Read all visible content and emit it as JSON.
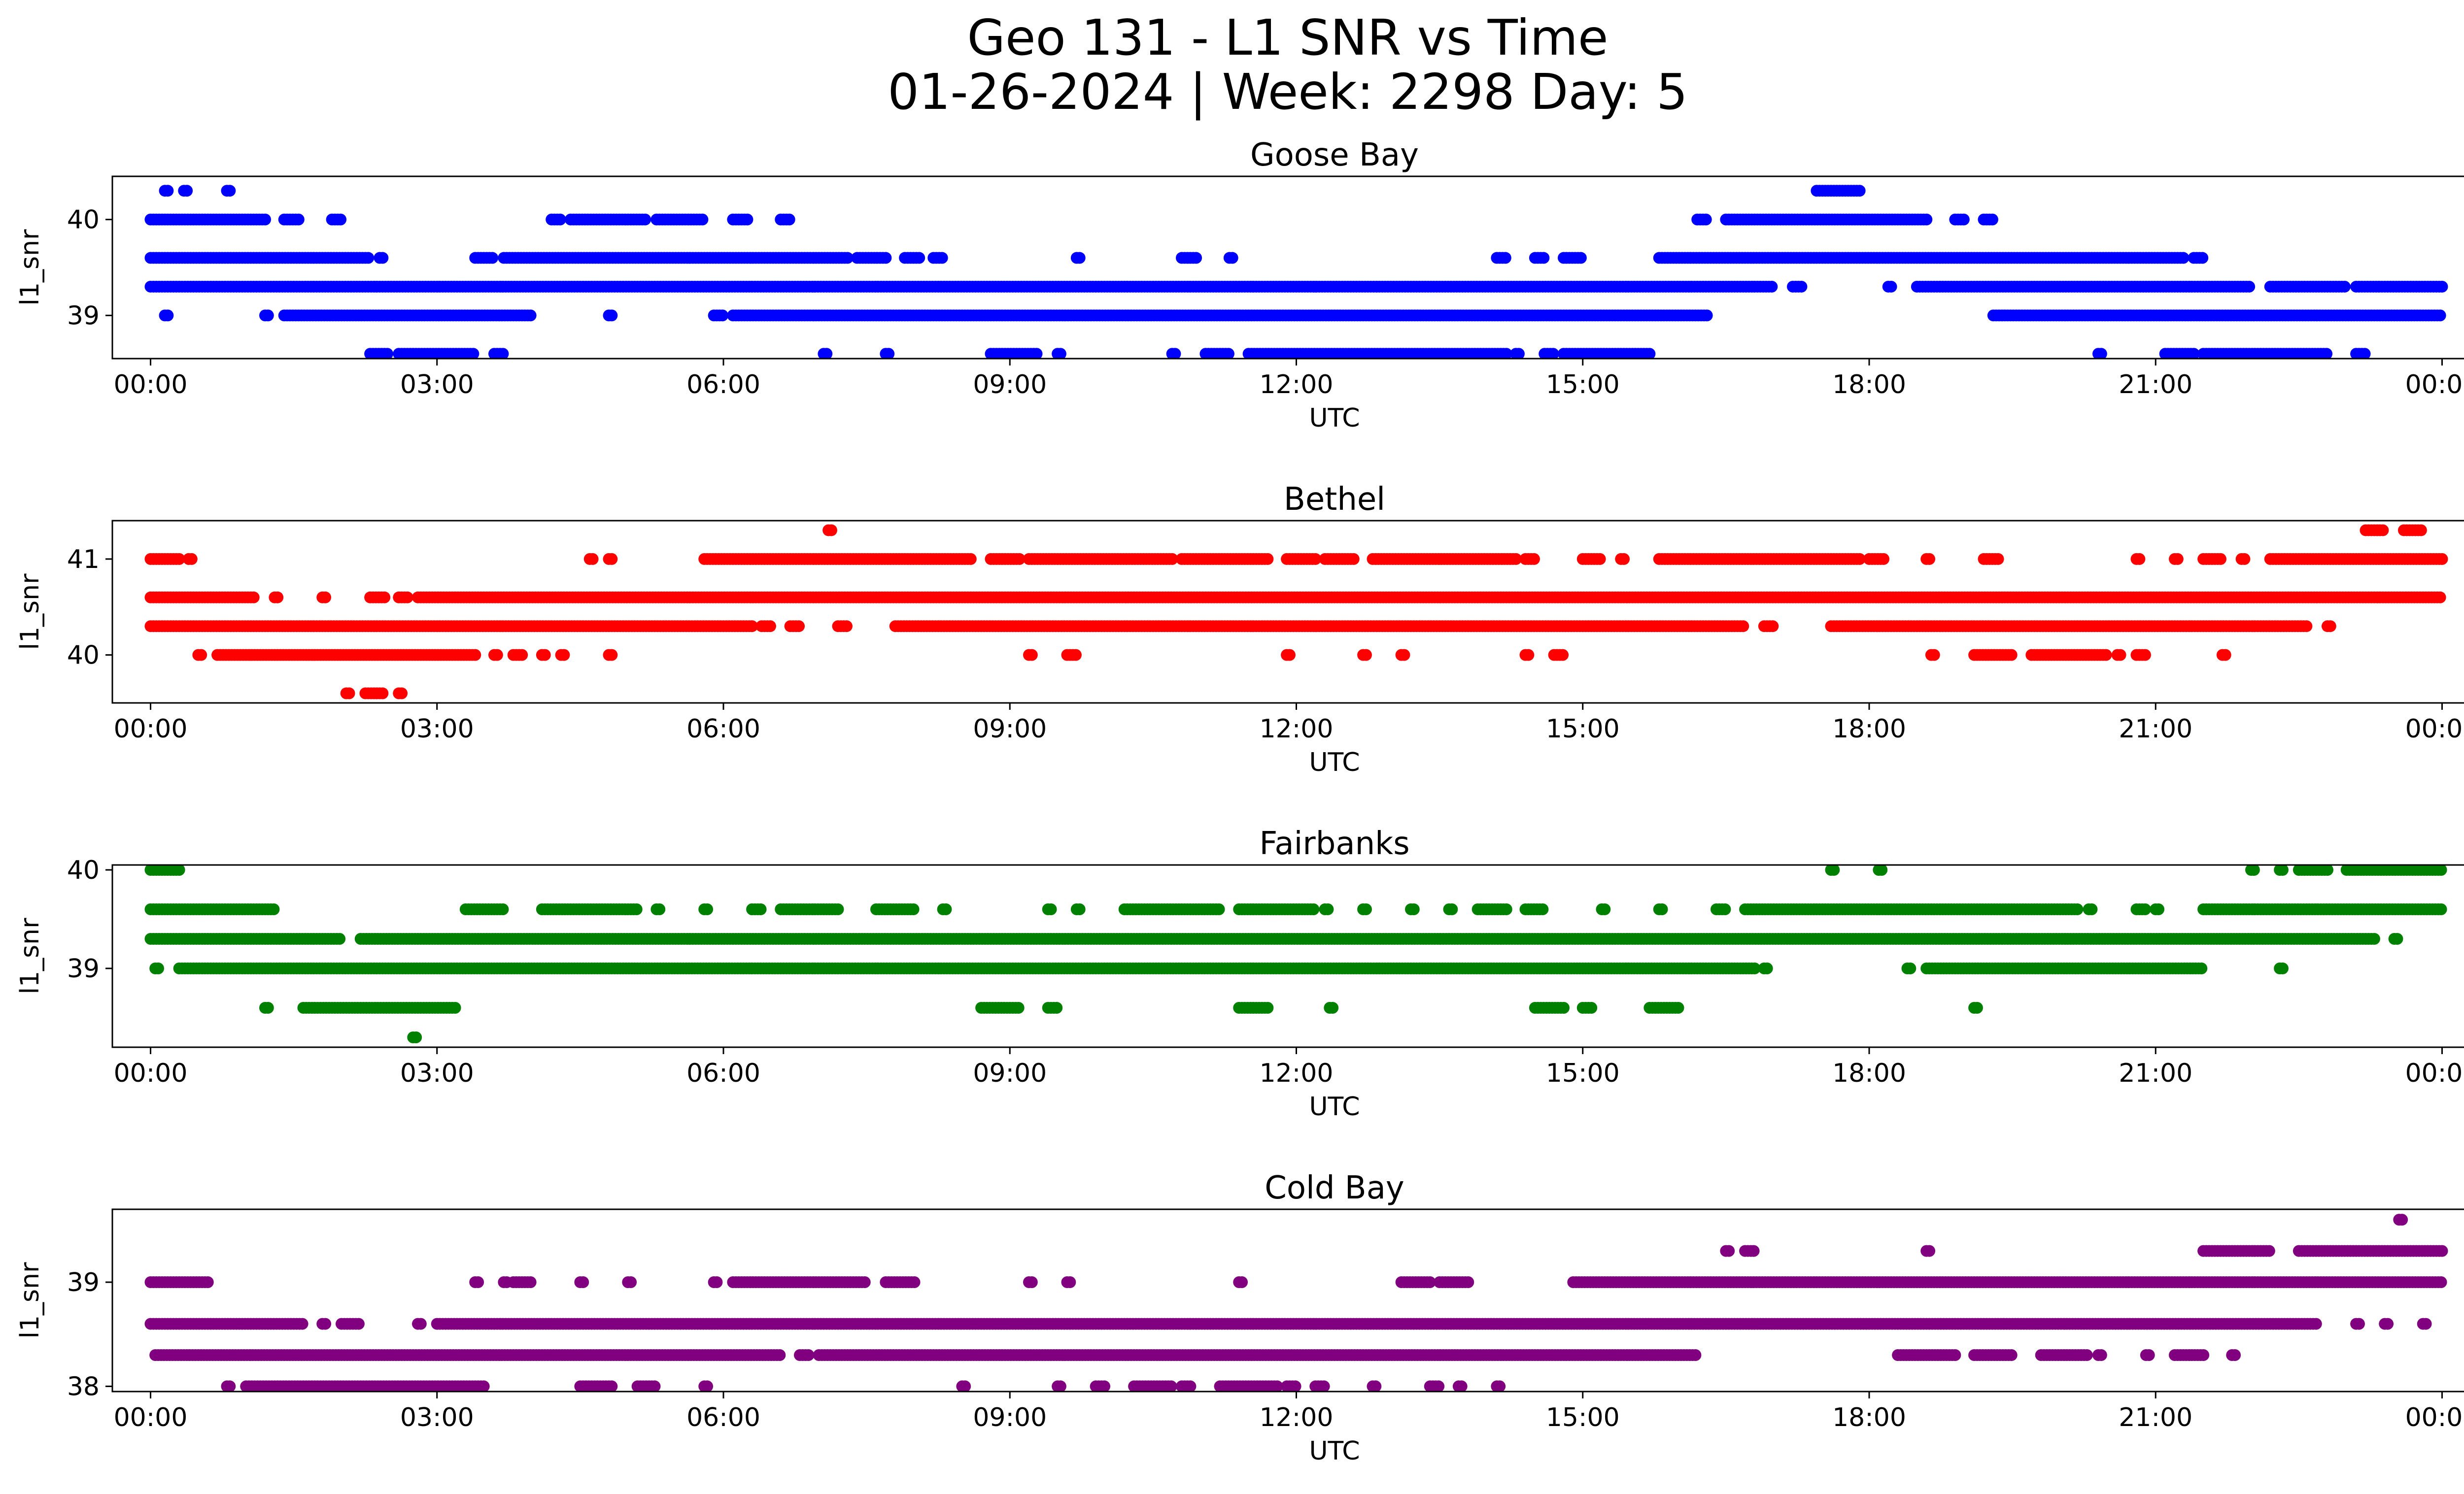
{
  "figure": {
    "title_line1": "Geo 131 - L1 SNR vs Time",
    "title_line2": "01-26-2024 | Week: 2298 Day: 5"
  },
  "x_axis": {
    "label": "UTC",
    "range_hours": [
      -0.4,
      25.2
    ],
    "ticks_hours": [
      0,
      3,
      6,
      9,
      12,
      15,
      18,
      21,
      24
    ],
    "tick_labels": [
      "00:00",
      "03:00",
      "06:00",
      "09:00",
      "12:00",
      "15:00",
      "18:00",
      "21:00",
      "00:00"
    ]
  },
  "chart_data": [
    {
      "type": "scatter",
      "title": "Goose Bay",
      "xlabel": "UTC",
      "ylabel": "l1_snr",
      "color": "#0000ff",
      "ylim": [
        38.55,
        40.45
      ],
      "yticks": [
        39,
        40
      ],
      "ytick_labels": [
        "39",
        "40"
      ],
      "runs": [
        {
          "y": 40.3,
          "segments": [
            [
              0.15,
              0.2
            ],
            [
              0.35,
              0.4
            ],
            [
              0.8,
              0.85
            ],
            [
              17.45,
              17.9
            ]
          ]
        },
        {
          "y": 40.0,
          "segments": [
            [
              0.0,
              1.2
            ],
            [
              1.4,
              1.55
            ],
            [
              1.9,
              2.0
            ],
            [
              4.2,
              4.3
            ],
            [
              4.4,
              5.2
            ],
            [
              5.3,
              5.8
            ],
            [
              6.1,
              6.25
            ],
            [
              6.6,
              6.7
            ],
            [
              16.2,
              16.3
            ],
            [
              16.5,
              18.6
            ],
            [
              18.9,
              19.0
            ],
            [
              19.2,
              19.3
            ]
          ]
        },
        {
          "y": 39.6,
          "segments": [
            [
              0.0,
              2.3
            ],
            [
              2.4,
              2.45
            ],
            [
              3.4,
              3.6
            ],
            [
              3.7,
              7.3
            ],
            [
              7.4,
              7.7
            ],
            [
              7.9,
              8.05
            ],
            [
              8.2,
              8.3
            ],
            [
              9.7,
              9.75
            ],
            [
              10.8,
              10.95
            ],
            [
              11.3,
              11.35
            ],
            [
              14.1,
              14.2
            ],
            [
              14.5,
              14.6
            ],
            [
              14.8,
              15.0
            ],
            [
              15.8,
              21.3
            ],
            [
              21.4,
              21.5
            ]
          ]
        },
        {
          "y": 39.3,
          "segments": [
            [
              0.0,
              17.0
            ],
            [
              17.2,
              17.3
            ],
            [
              18.2,
              18.25
            ],
            [
              18.5,
              22.0
            ],
            [
              22.2,
              23.0
            ],
            [
              23.1,
              24.0
            ]
          ]
        },
        {
          "y": 39.0,
          "segments": [
            [
              0.15,
              0.2
            ],
            [
              1.2,
              1.25
            ],
            [
              1.4,
              4.0
            ],
            [
              4.8,
              4.85
            ],
            [
              5.9,
              6.0
            ],
            [
              6.1,
              16.3
            ],
            [
              19.3,
              24.0
            ]
          ]
        },
        {
          "y": 38.6,
          "segments": [
            [
              2.3,
              2.5
            ],
            [
              2.6,
              3.4
            ],
            [
              3.6,
              3.7
            ],
            [
              7.05,
              7.1
            ],
            [
              7.7,
              7.75
            ],
            [
              8.8,
              9.3
            ],
            [
              9.5,
              9.55
            ],
            [
              10.7,
              10.75
            ],
            [
              11.05,
              11.3
            ],
            [
              11.5,
              14.2
            ],
            [
              14.3,
              14.35
            ],
            [
              14.6,
              14.7
            ],
            [
              14.8,
              15.7
            ],
            [
              20.4,
              20.45
            ],
            [
              21.1,
              21.4
            ],
            [
              21.5,
              22.8
            ],
            [
              23.1,
              23.2
            ]
          ]
        }
      ]
    },
    {
      "type": "scatter",
      "title": "Bethel",
      "xlabel": "UTC",
      "ylabel": "l1_snr",
      "color": "#ff0000",
      "ylim": [
        39.5,
        41.4
      ],
      "yticks": [
        40,
        41
      ],
      "ytick_labels": [
        "40",
        "41"
      ],
      "runs": [
        {
          "y": 41.3,
          "segments": [
            [
              7.1,
              7.15
            ],
            [
              23.2,
              23.4
            ],
            [
              23.6,
              23.8
            ]
          ]
        },
        {
          "y": 41.0,
          "segments": [
            [
              0.0,
              0.3
            ],
            [
              0.4,
              0.45
            ],
            [
              4.6,
              4.65
            ],
            [
              4.8,
              4.85
            ],
            [
              5.8,
              8.6
            ],
            [
              8.8,
              9.1
            ],
            [
              9.2,
              10.7
            ],
            [
              10.8,
              11.7
            ],
            [
              11.9,
              12.2
            ],
            [
              12.3,
              12.6
            ],
            [
              12.8,
              14.3
            ],
            [
              14.4,
              14.5
            ],
            [
              15.0,
              15.2
            ],
            [
              15.4,
              15.45
            ],
            [
              15.8,
              17.9
            ],
            [
              18.0,
              18.15
            ],
            [
              18.6,
              18.65
            ],
            [
              19.2,
              19.35
            ],
            [
              20.8,
              20.85
            ],
            [
              21.2,
              21.25
            ],
            [
              21.5,
              21.7
            ],
            [
              21.9,
              21.95
            ],
            [
              22.2,
              24.0
            ]
          ]
        },
        {
          "y": 40.6,
          "segments": [
            [
              0.0,
              1.1
            ],
            [
              1.3,
              1.35
            ],
            [
              1.8,
              1.85
            ],
            [
              2.3,
              2.45
            ],
            [
              2.6,
              2.7
            ],
            [
              2.8,
              24.0
            ]
          ]
        },
        {
          "y": 40.3,
          "segments": [
            [
              0.0,
              6.3
            ],
            [
              6.4,
              6.5
            ],
            [
              6.7,
              6.8
            ],
            [
              7.2,
              7.3
            ],
            [
              7.8,
              16.7
            ],
            [
              16.9,
              17.0
            ],
            [
              17.6,
              22.6
            ],
            [
              22.8,
              22.85
            ]
          ]
        },
        {
          "y": 40.0,
          "segments": [
            [
              0.5,
              0.55
            ],
            [
              0.7,
              3.4
            ],
            [
              3.6,
              3.65
            ],
            [
              3.8,
              3.9
            ],
            [
              4.1,
              4.15
            ],
            [
              4.3,
              4.35
            ],
            [
              4.8,
              4.85
            ],
            [
              9.2,
              9.25
            ],
            [
              9.6,
              9.7
            ],
            [
              11.9,
              11.95
            ],
            [
              12.7,
              12.75
            ],
            [
              13.1,
              13.15
            ],
            [
              14.4,
              14.45
            ],
            [
              14.7,
              14.8
            ],
            [
              18.65,
              18.7
            ],
            [
              19.1,
              19.5
            ],
            [
              19.7,
              20.5
            ],
            [
              20.6,
              20.65
            ],
            [
              20.8,
              20.9
            ],
            [
              21.7,
              21.75
            ]
          ]
        },
        {
          "y": 39.6,
          "segments": [
            [
              2.05,
              2.1
            ],
            [
              2.25,
              2.45
            ],
            [
              2.6,
              2.65
            ]
          ]
        }
      ]
    },
    {
      "type": "scatter",
      "title": "Fairbanks",
      "xlabel": "UTC",
      "ylabel": "l1_snr",
      "color": "#008000",
      "ylim": [
        38.2,
        40.05
      ],
      "yticks": [
        39,
        40
      ],
      "ytick_labels": [
        "39",
        "40"
      ],
      "runs": [
        {
          "y": 40.0,
          "segments": [
            [
              0.0,
              0.3
            ],
            [
              17.6,
              17.65
            ],
            [
              18.1,
              18.15
            ],
            [
              22.0,
              22.05
            ],
            [
              22.3,
              22.35
            ],
            [
              22.5,
              22.8
            ],
            [
              23.0,
              24.0
            ]
          ]
        },
        {
          "y": 39.6,
          "segments": [
            [
              0.0,
              1.3
            ],
            [
              3.3,
              3.7
            ],
            [
              4.1,
              5.1
            ],
            [
              5.3,
              5.35
            ],
            [
              5.8,
              5.85
            ],
            [
              6.3,
              6.4
            ],
            [
              6.6,
              7.2
            ],
            [
              7.6,
              8.0
            ],
            [
              8.3,
              8.35
            ],
            [
              9.4,
              9.45
            ],
            [
              9.7,
              9.75
            ],
            [
              10.2,
              11.2
            ],
            [
              11.4,
              12.2
            ],
            [
              12.3,
              12.35
            ],
            [
              12.7,
              12.75
            ],
            [
              13.2,
              13.25
            ],
            [
              13.6,
              13.65
            ],
            [
              13.9,
              14.2
            ],
            [
              14.4,
              14.6
            ],
            [
              15.2,
              15.25
            ],
            [
              15.8,
              15.85
            ],
            [
              16.4,
              16.5
            ],
            [
              16.7,
              20.2
            ],
            [
              20.3,
              20.35
            ],
            [
              20.8,
              20.9
            ],
            [
              21.0,
              21.05
            ],
            [
              21.5,
              24.0
            ]
          ]
        },
        {
          "y": 39.3,
          "segments": [
            [
              0.0,
              2.0
            ],
            [
              2.2,
              23.3
            ],
            [
              23.5,
              23.55
            ]
          ]
        },
        {
          "y": 39.0,
          "segments": [
            [
              0.05,
              0.1
            ],
            [
              0.3,
              16.8
            ],
            [
              16.9,
              16.95
            ],
            [
              18.4,
              18.45
            ],
            [
              18.6,
              21.5
            ],
            [
              22.3,
              22.35
            ]
          ]
        },
        {
          "y": 38.6,
          "segments": [
            [
              1.2,
              1.25
            ],
            [
              1.6,
              3.2
            ],
            [
              8.7,
              9.1
            ],
            [
              9.4,
              9.5
            ],
            [
              11.4,
              11.7
            ],
            [
              12.35,
              12.4
            ],
            [
              14.5,
              14.8
            ],
            [
              15.0,
              15.1
            ],
            [
              15.7,
              16.0
            ],
            [
              19.1,
              19.15
            ]
          ]
        },
        {
          "y": 38.3,
          "segments": [
            [
              2.75,
              2.8
            ]
          ]
        }
      ]
    },
    {
      "type": "scatter",
      "title": "Cold Bay",
      "xlabel": "UTC",
      "ylabel": "l1_snr",
      "color": "#800080",
      "ylim": [
        37.95,
        39.7
      ],
      "yticks": [
        38,
        39
      ],
      "ytick_labels": [
        "38",
        "39"
      ],
      "runs": [
        {
          "y": 39.6,
          "segments": [
            [
              23.55,
              23.6
            ]
          ]
        },
        {
          "y": 39.3,
          "segments": [
            [
              16.5,
              16.55
            ],
            [
              16.7,
              16.8
            ],
            [
              18.6,
              18.65
            ],
            [
              21.5,
              22.2
            ],
            [
              22.5,
              24.0
            ]
          ]
        },
        {
          "y": 39.0,
          "segments": [
            [
              0.0,
              0.6
            ],
            [
              3.4,
              3.45
            ],
            [
              3.7,
              3.75
            ],
            [
              3.8,
              4.0
            ],
            [
              4.5,
              4.55
            ],
            [
              5.0,
              5.05
            ],
            [
              5.9,
              5.95
            ],
            [
              6.1,
              7.5
            ],
            [
              7.7,
              8.0
            ],
            [
              9.2,
              9.25
            ],
            [
              9.6,
              9.65
            ],
            [
              11.4,
              11.45
            ],
            [
              13.1,
              13.4
            ],
            [
              13.5,
              13.8
            ],
            [
              14.9,
              24.0
            ]
          ]
        },
        {
          "y": 38.6,
          "segments": [
            [
              0.0,
              1.6
            ],
            [
              1.8,
              1.85
            ],
            [
              2.0,
              2.2
            ],
            [
              2.8,
              2.85
            ],
            [
              3.0,
              22.7
            ],
            [
              23.1,
              23.15
            ],
            [
              23.4,
              23.45
            ],
            [
              23.8,
              23.85
            ]
          ]
        },
        {
          "y": 38.3,
          "segments": [
            [
              0.05,
              6.6
            ],
            [
              6.8,
              6.9
            ],
            [
              7.0,
              16.2
            ],
            [
              18.3,
              18.9
            ],
            [
              19.1,
              19.5
            ],
            [
              19.8,
              20.3
            ],
            [
              20.4,
              20.45
            ],
            [
              20.9,
              20.95
            ],
            [
              21.2,
              21.5
            ],
            [
              21.8,
              21.85
            ]
          ]
        },
        {
          "y": 38.0,
          "segments": [
            [
              0.8,
              0.85
            ],
            [
              1.0,
              3.5
            ],
            [
              4.5,
              4.85
            ],
            [
              5.1,
              5.3
            ],
            [
              5.8,
              5.85
            ],
            [
              8.5,
              8.55
            ],
            [
              9.5,
              9.55
            ],
            [
              9.9,
              10.0
            ],
            [
              10.3,
              10.7
            ],
            [
              10.8,
              10.9
            ],
            [
              11.2,
              11.8
            ],
            [
              11.9,
              12.0
            ],
            [
              12.2,
              12.3
            ],
            [
              12.8,
              12.85
            ],
            [
              13.4,
              13.5
            ],
            [
              13.7,
              13.75
            ],
            [
              14.1,
              14.15
            ]
          ]
        }
      ]
    }
  ]
}
